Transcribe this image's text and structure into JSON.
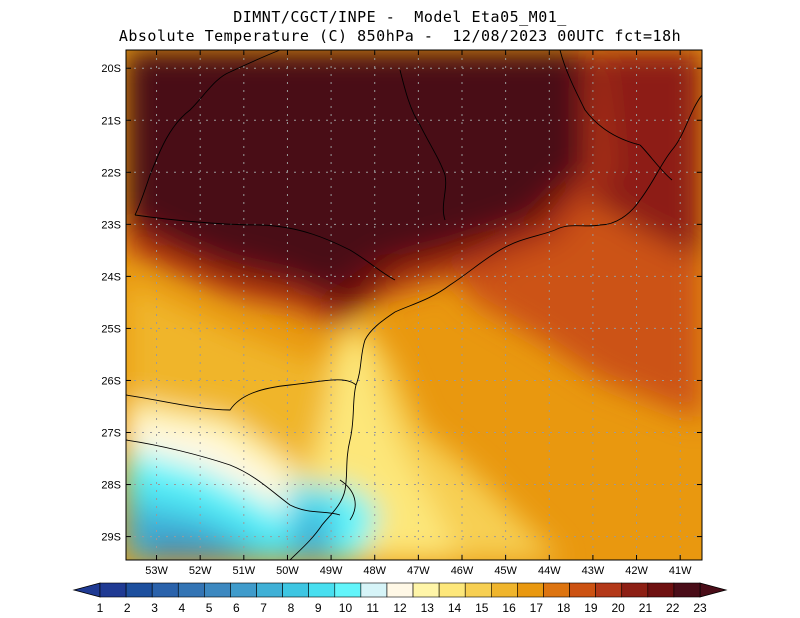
{
  "header": {
    "line1": "DIMNT/CGCT/INPE -  Model Eta05_M01_",
    "line2": "Absolute Temperature (C) 850hPa -  12/08/2023 00UTC fct=18h"
  },
  "map": {
    "lat_ticks": [
      "20S",
      "21S",
      "22S",
      "23S",
      "24S",
      "25S",
      "26S",
      "27S",
      "28S",
      "29S"
    ],
    "lon_ticks": [
      "53W",
      "52W",
      "51W",
      "50W",
      "49W",
      "48W",
      "47W",
      "46W",
      "45W",
      "44W",
      "43W",
      "42W",
      "41W"
    ],
    "lat_range": [
      -29.45,
      -19.65
    ],
    "lon_range": [
      -53.7,
      -40.5
    ],
    "gridlines": "dotted"
  },
  "colorbar": {
    "labels": [
      "1",
      "2",
      "3",
      "4",
      "5",
      "6",
      "7",
      "8",
      "9",
      "10",
      "11",
      "12",
      "13",
      "14",
      "15",
      "16",
      "17",
      "18",
      "19",
      "20",
      "21",
      "22",
      "23"
    ],
    "colors": [
      "#1f3a93",
      "#1d4f9e",
      "#2a62ab",
      "#3374b4",
      "#3c88c0",
      "#3f9bcb",
      "#3fb0d6",
      "#3ec6e2",
      "#48dff0",
      "#62f5fb",
      "#d6f4f8",
      "#fff8e6",
      "#fff5a8",
      "#fde77a",
      "#f7cf52",
      "#f0b52c",
      "#e9980f",
      "#dd7410",
      "#cc5212",
      "#b33818",
      "#8d1f14",
      "#6e1010",
      "#4a0d18"
    ]
  }
}
